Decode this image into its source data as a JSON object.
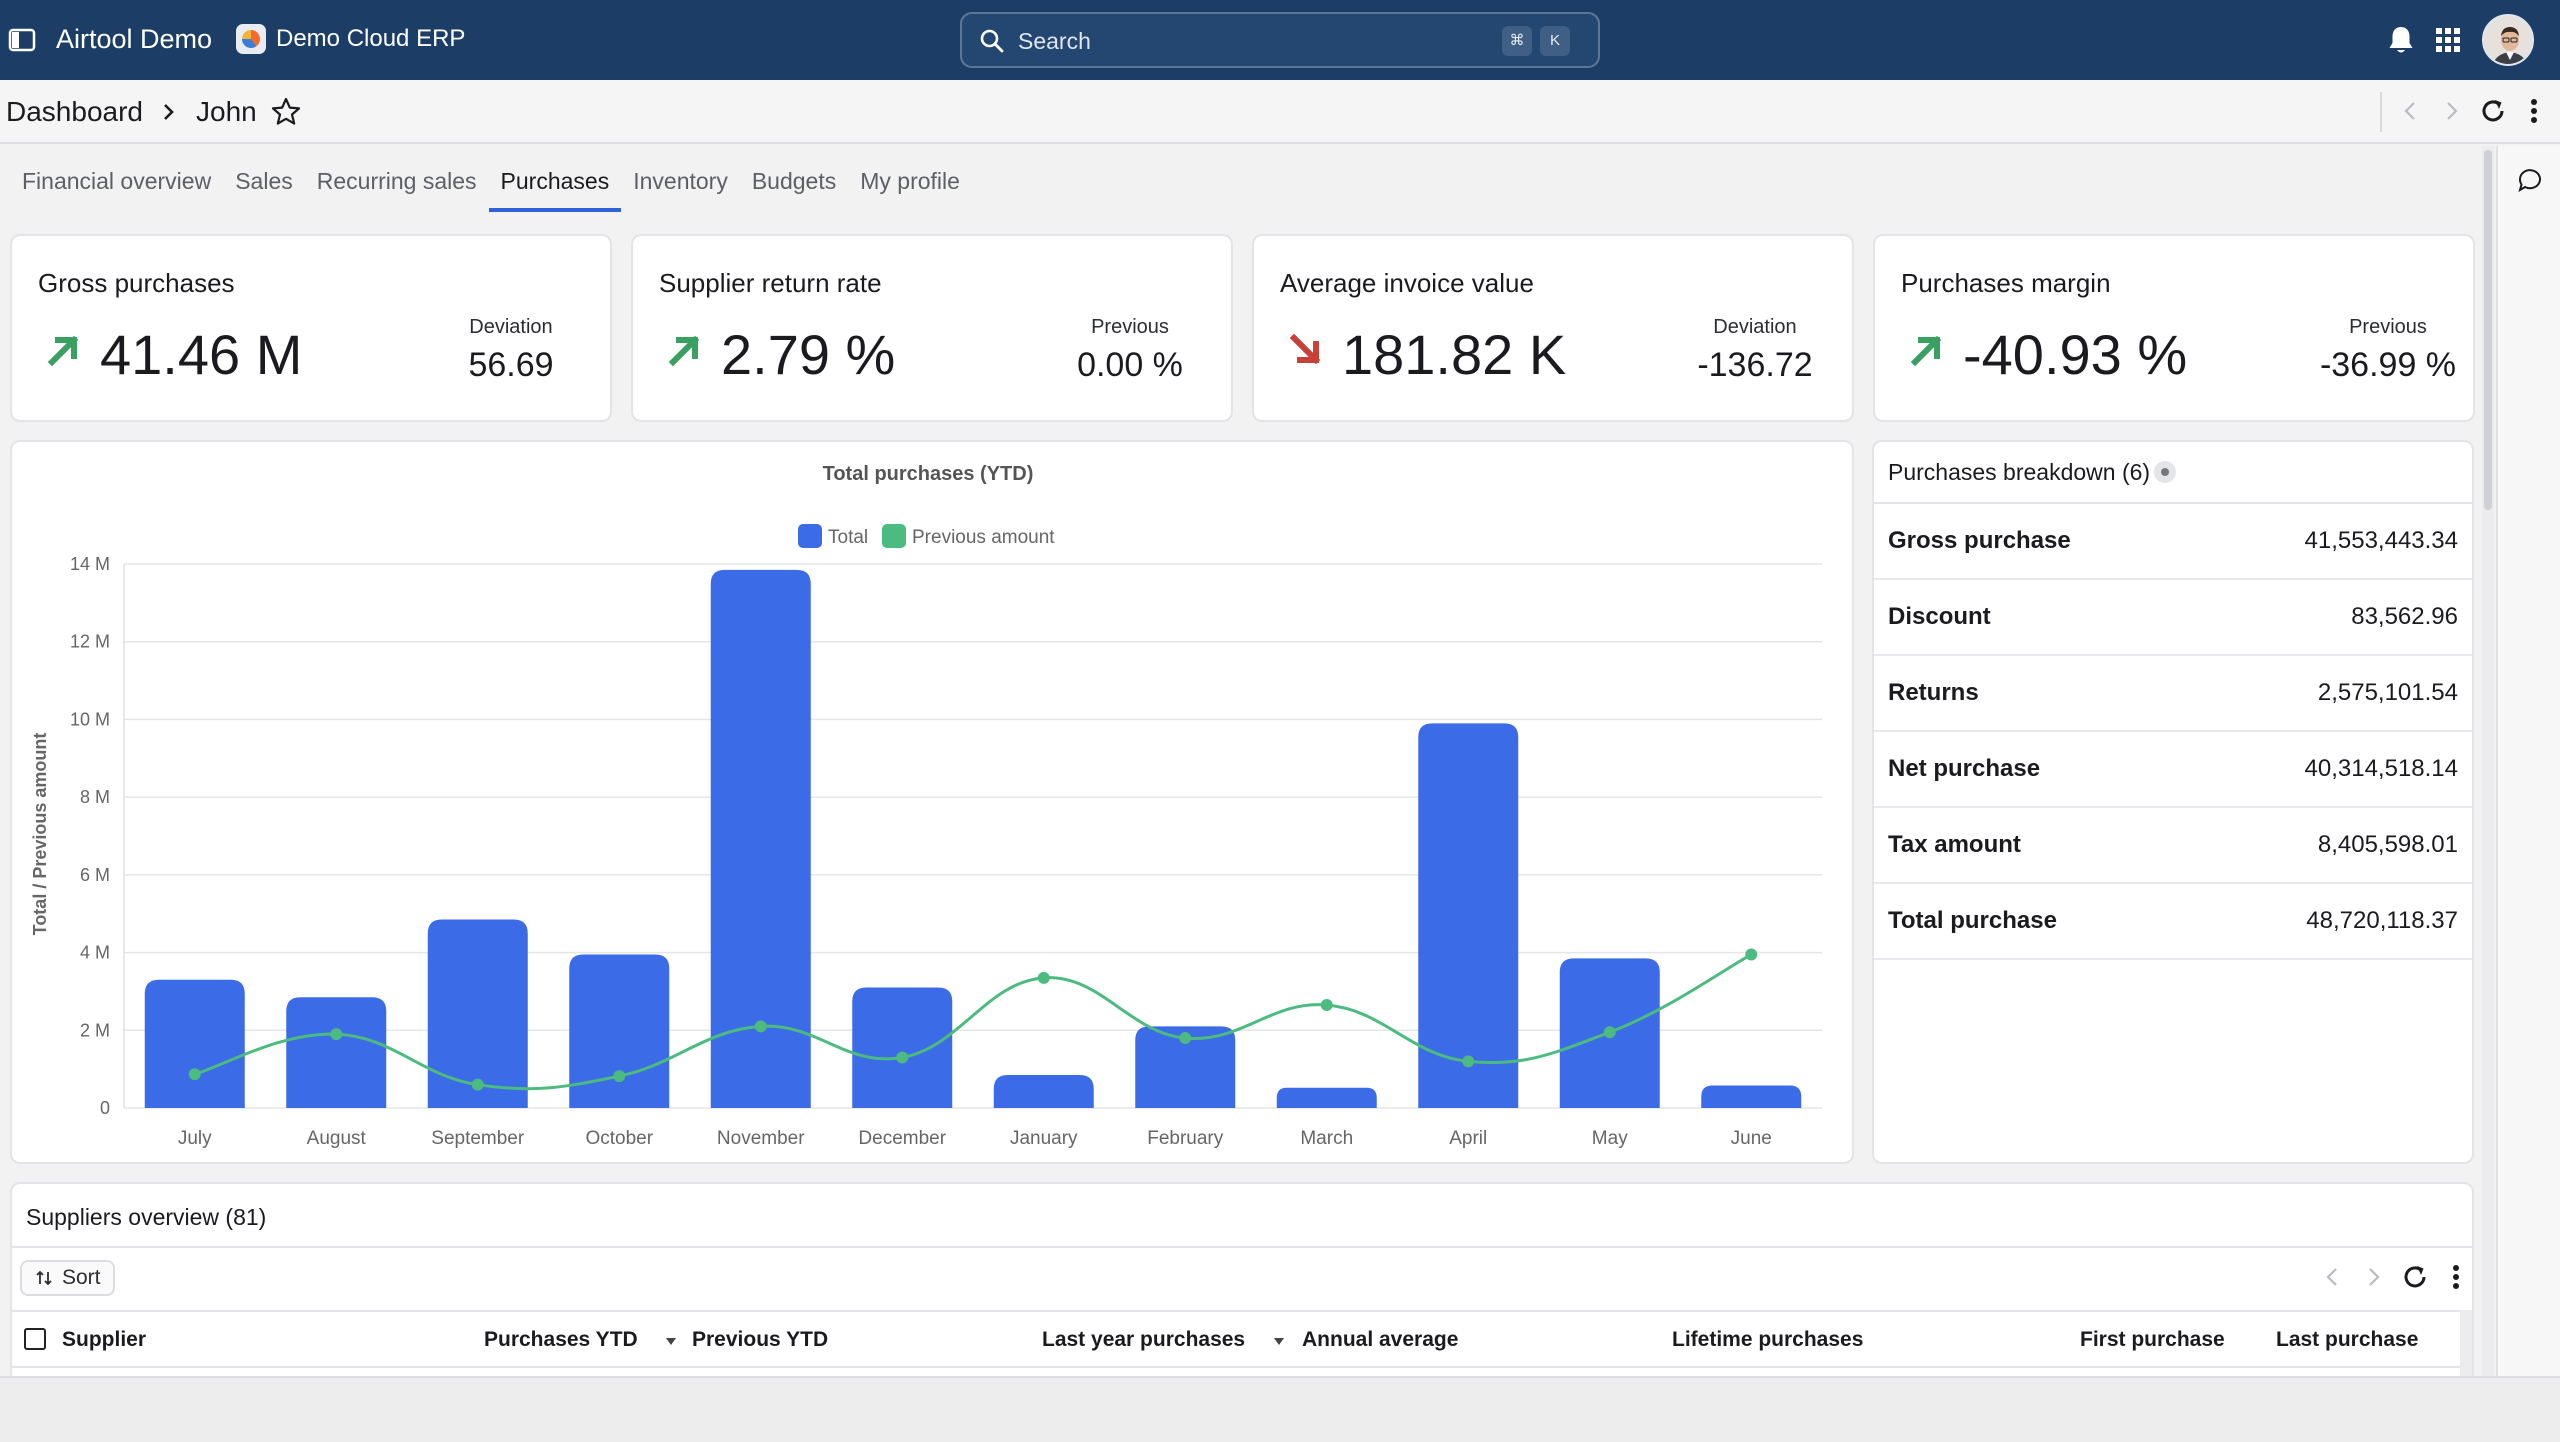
{
  "topbar": {
    "app_name": "Airtool Demo",
    "company": "Demo Cloud ERP",
    "search_placeholder": "Search",
    "shortcut_key1": "⌘",
    "shortcut_key2": "K"
  },
  "breadcrumb": {
    "root": "Dashboard",
    "current": "John"
  },
  "tabs": [
    "Financial overview",
    "Sales",
    "Recurring sales",
    "Purchases",
    "Inventory",
    "Budgets",
    "My profile"
  ],
  "active_tab": "Purchases",
  "kpis": [
    {
      "title": "Gross purchases",
      "value": "41.46 M",
      "side_label": "Deviation",
      "side_value": "56.69",
      "trend": "up"
    },
    {
      "title": "Supplier return rate",
      "value": "2.79 %",
      "side_label": "Previous",
      "side_value": "0.00 %",
      "trend": "up"
    },
    {
      "title": "Average invoice value",
      "value": "181.82 K",
      "side_label": "Deviation",
      "side_value": "-136.72",
      "trend": "down"
    },
    {
      "title": "Purchases margin",
      "value": "-40.93 %",
      "side_label": "Previous",
      "side_value": "-36.99 %",
      "trend": "up"
    }
  ],
  "colors": {
    "topbar": "#1c3e66",
    "accent": "#2f62d9",
    "bar": "#3b6be6",
    "line": "#4cbb7f",
    "up": "#3aa062",
    "down": "#c8403a"
  },
  "chart_data": {
    "type": "bar",
    "title": "Total purchases (YTD)",
    "ylabel": "Total / Previous amount",
    "xlabel": "",
    "categories": [
      "July",
      "August",
      "September",
      "October",
      "November",
      "December",
      "January",
      "February",
      "March",
      "April",
      "May",
      "June"
    ],
    "series": [
      {
        "name": "Total",
        "type": "bar",
        "values": [
          3300000,
          2850000,
          4850000,
          3950000,
          13850000,
          3100000,
          850000,
          2100000,
          520000,
          9900000,
          3850000,
          580000
        ]
      },
      {
        "name": "Previous amount",
        "type": "line",
        "values": [
          870000,
          1900000,
          600000,
          820000,
          2100000,
          1300000,
          3350000,
          1800000,
          2650000,
          1200000,
          1950000,
          3950000
        ]
      }
    ],
    "ylim": [
      0,
      14000000
    ],
    "yticks": [
      0,
      2000000,
      4000000,
      6000000,
      8000000,
      10000000,
      12000000,
      14000000
    ],
    "ytick_labels": [
      "0",
      "2 M",
      "4 M",
      "6 M",
      "8 M",
      "10 M",
      "12 M",
      "14 M"
    ],
    "legend": "top-center",
    "grid": true
  },
  "breakdown": {
    "title": "Purchases breakdown (6)",
    "rows": [
      {
        "label": "Gross purchase",
        "value": "41,553,443.34"
      },
      {
        "label": "Discount",
        "value": "83,562.96"
      },
      {
        "label": "Returns",
        "value": "2,575,101.54"
      },
      {
        "label": "Net purchase",
        "value": "40,314,518.14"
      },
      {
        "label": "Tax amount",
        "value": "8,405,598.01"
      },
      {
        "label": "Total purchase",
        "value": "48,720,118.37"
      }
    ]
  },
  "suppliers": {
    "title": "Suppliers overview (81)",
    "sort_label": "Sort",
    "columns": [
      "Supplier",
      "Purchases YTD",
      "Previous YTD",
      "Last year purchases",
      "Annual average",
      "Lifetime purchases",
      "First purchase",
      "Last purchase"
    ]
  }
}
